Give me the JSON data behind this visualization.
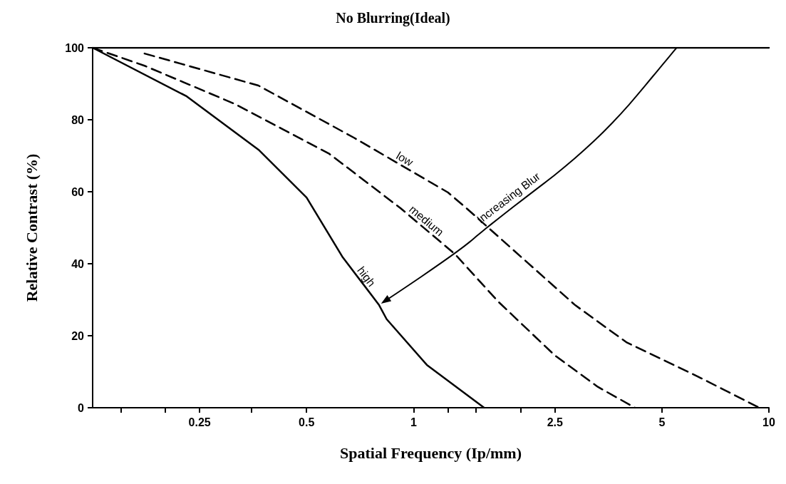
{
  "chart_data": {
    "type": "line",
    "title": "No Blurring(Ideal)",
    "xlabel": "Spatial Frequency (Ip/mm)",
    "ylabel": "Relative Contrast (%)",
    "log": "x",
    "xlim": [
      0.125,
      10
    ],
    "xticks": [
      {
        "value": 0.15,
        "label": null
      },
      {
        "value": 0.2,
        "label": null
      },
      0.25,
      {
        "value": 0.35,
        "label": null
      },
      0.5,
      1,
      {
        "value": 1.25,
        "label": null
      },
      {
        "value": 1.5,
        "label": null
      },
      {
        "value": 2,
        "label": null
      },
      2.5,
      5,
      10
    ],
    "ylim": [
      0,
      100
    ],
    "yticks": [
      0,
      20,
      40,
      60,
      80,
      100
    ],
    "grid": false,
    "legend": false,
    "marker": "none",
    "series": [
      {
        "color": "#000000",
        "line_style": "solid",
        "x": [
          0.125,
          10
        ],
        "values": [
          100,
          100
        ]
      },
      {
        "name": "low",
        "color": "#000000",
        "line_style": "dashed",
        "x": [
          0.175,
          0.366,
          0.68,
          1.25,
          1.41,
          2.85,
          3.97,
          6.3,
          9.4
        ],
        "values": [
          98.4,
          89.5,
          75,
          59.8,
          55.4,
          28.5,
          18.2,
          8.7,
          0
        ]
      },
      {
        "name": "medium",
        "color": "#000000",
        "line_style": "dashed",
        "x": [
          0.125,
          0.175,
          0.314,
          0.58,
          0.92,
          1.21,
          1.31,
          1.73,
          2.5,
          3.3,
          4.2
        ],
        "values": [
          100,
          95,
          84.4,
          70.5,
          55.4,
          45.5,
          42.6,
          29.5,
          14.5,
          5.8,
          0
        ]
      },
      {
        "name": "high",
        "color": "#000000",
        "line_style": "solid",
        "x": [
          0.125,
          0.23,
          0.366,
          0.5,
          0.63,
          0.8,
          0.84,
          1.09,
          1.58
        ],
        "values": [
          100,
          86.5,
          71.7,
          58.4,
          42,
          28.5,
          24.6,
          11.9,
          0
        ]
      }
    ],
    "annotations": [
      {
        "text": "Increasing Blur",
        "x": 1.63,
        "y": 50.7
      }
    ]
  }
}
